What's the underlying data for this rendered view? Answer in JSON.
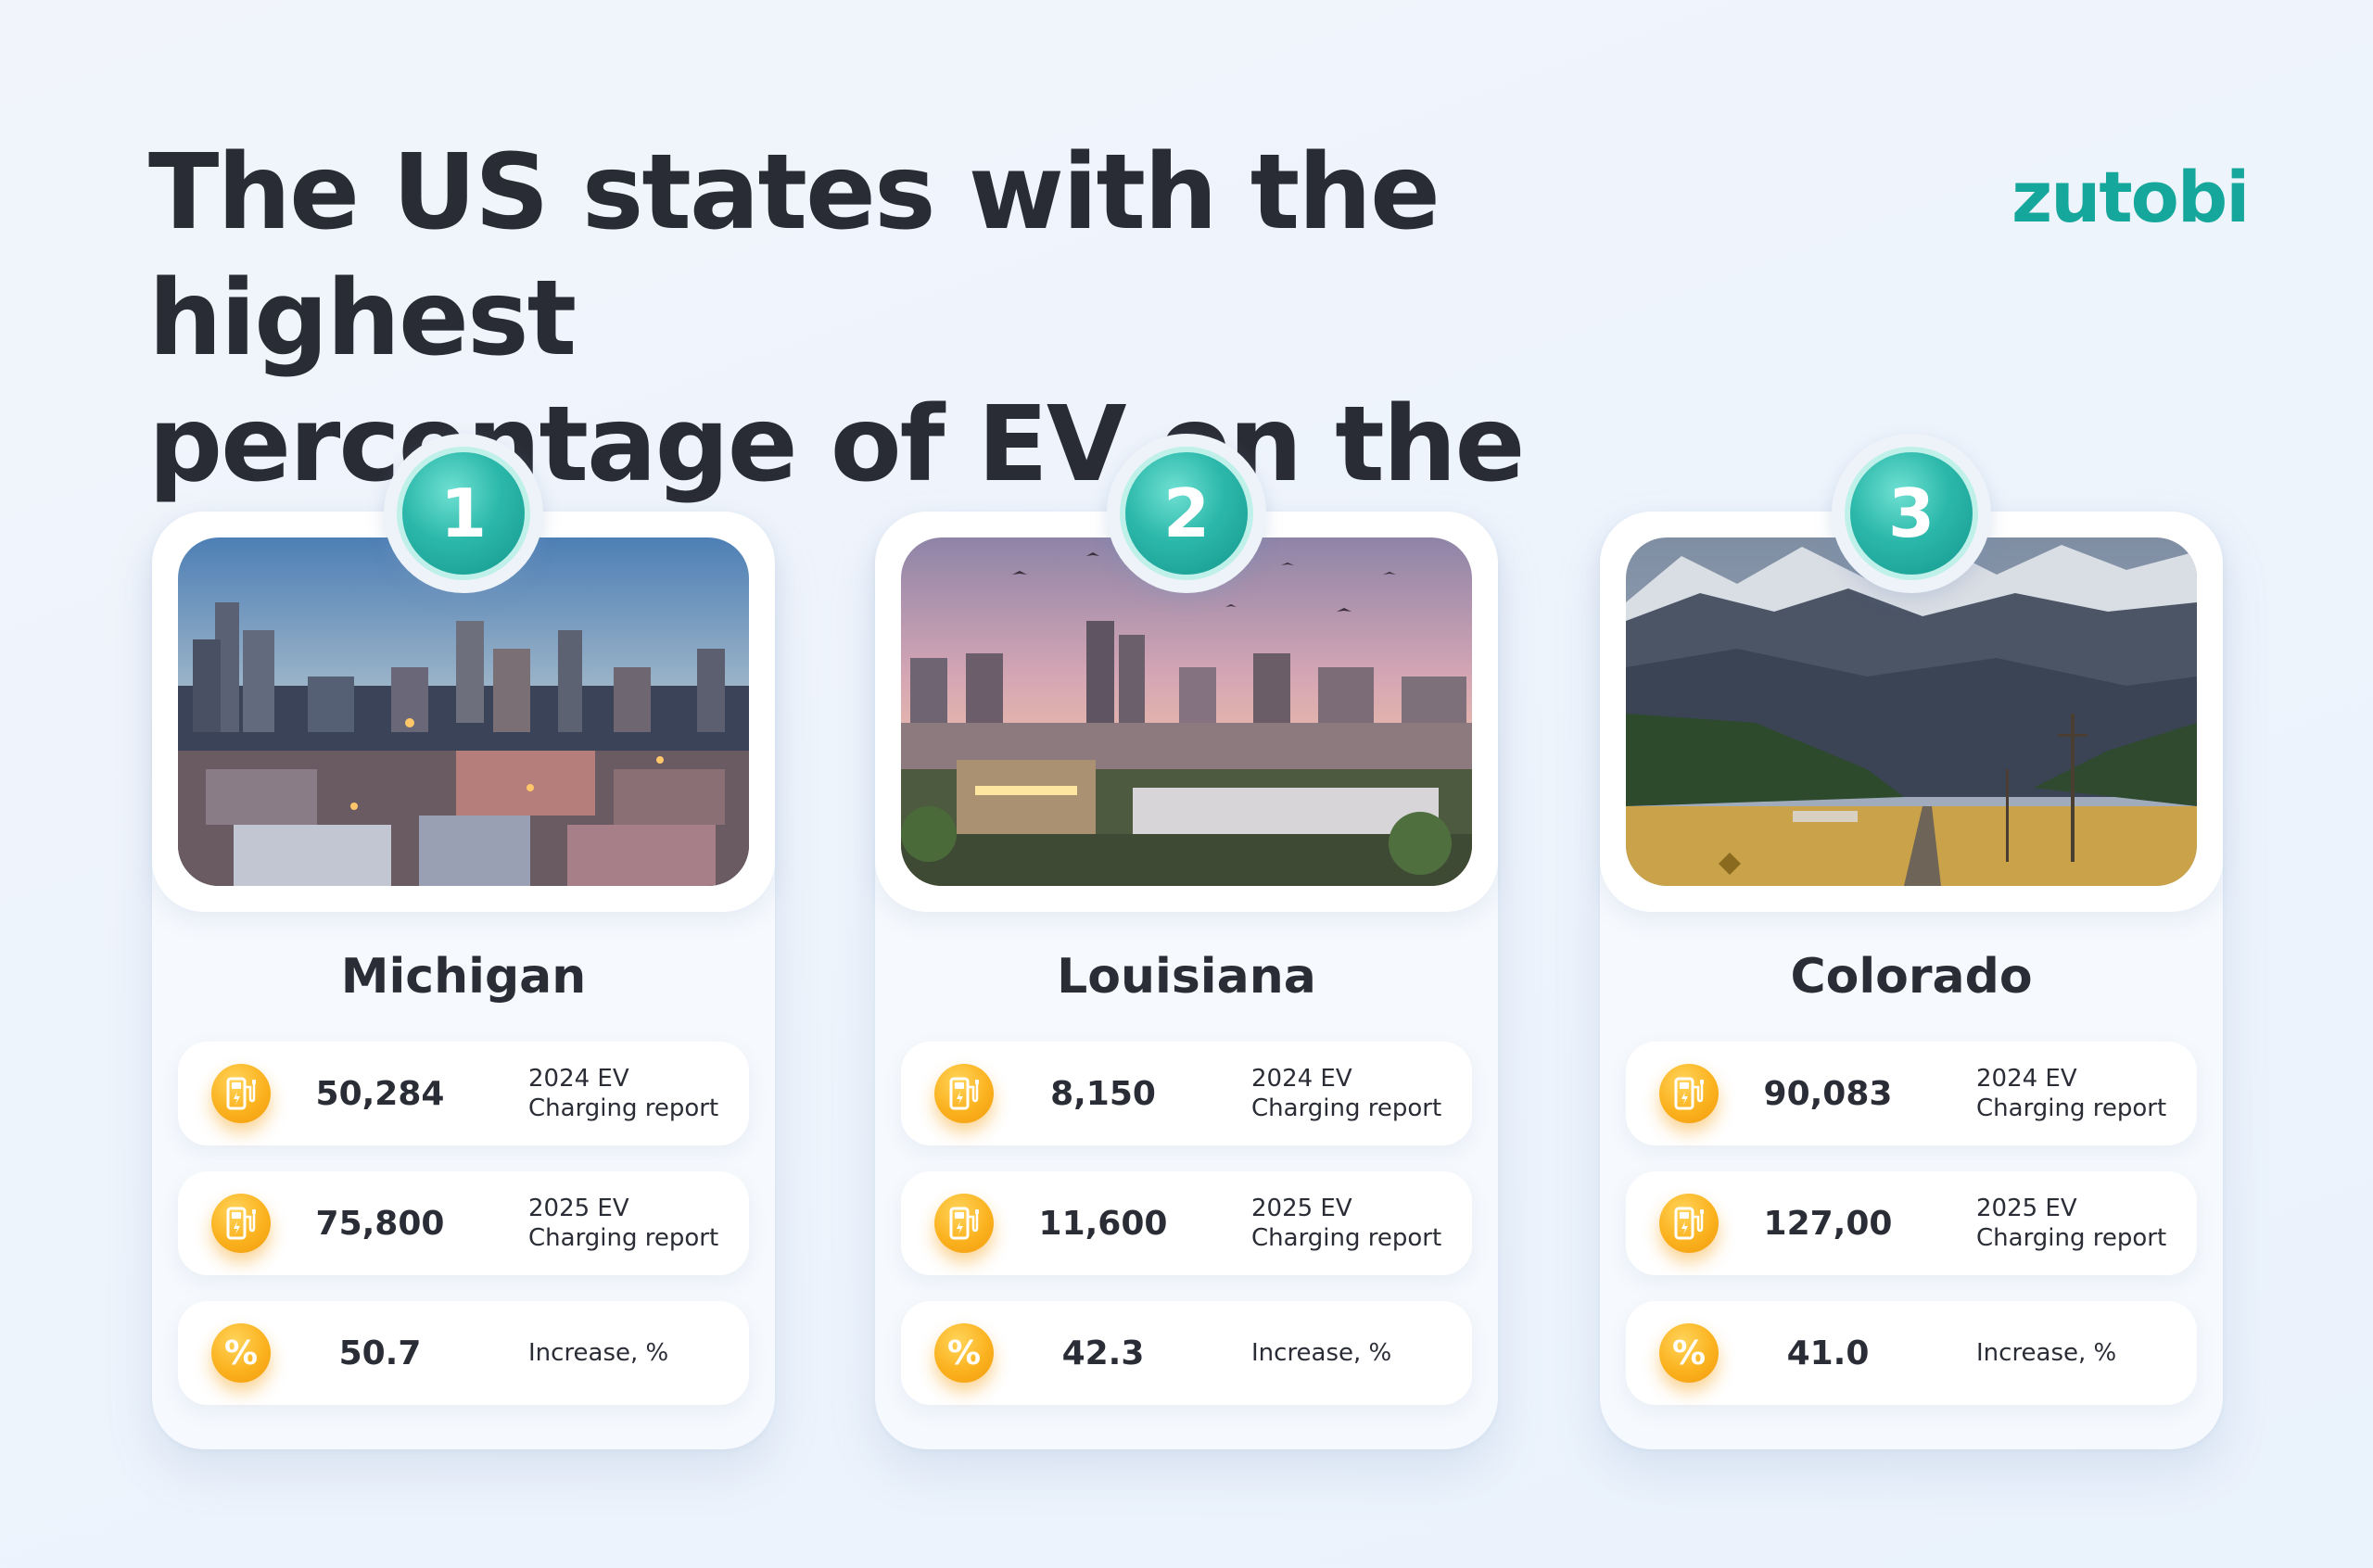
{
  "title_line1": "The US states with the highest",
  "title_line2": "percentage of EV on the road",
  "logo": "zutobi",
  "cards": [
    {
      "rank": "1",
      "state": "Michigan",
      "rows": [
        {
          "value": "50,284",
          "label_line1": "2024 EV",
          "label_line2": "Charging report",
          "icon": "ev-charger-icon"
        },
        {
          "value": "75,800",
          "label_line1": "2025 EV",
          "label_line2": "Charging report",
          "icon": "ev-charger-icon"
        },
        {
          "value": "50.7",
          "label_line1": "Increase, %",
          "label_line2": "",
          "icon": "percent-icon"
        }
      ]
    },
    {
      "rank": "2",
      "state": "Louisiana",
      "rows": [
        {
          "value": "8,150",
          "label_line1": "2024 EV",
          "label_line2": "Charging report",
          "icon": "ev-charger-icon"
        },
        {
          "value": "11,600",
          "label_line1": "2025 EV",
          "label_line2": "Charging report",
          "icon": "ev-charger-icon"
        },
        {
          "value": "42.3",
          "label_line1": "Increase, %",
          "label_line2": "",
          "icon": "percent-icon"
        }
      ]
    },
    {
      "rank": "3",
      "state": "Colorado",
      "rows": [
        {
          "value": "90,083",
          "label_line1": "2024 EV",
          "label_line2": "Charging report",
          "icon": "ev-charger-icon"
        },
        {
          "value": "127,00",
          "label_line1": "2025 EV",
          "label_line2": "Charging report",
          "icon": "ev-charger-icon"
        },
        {
          "value": "41.0",
          "label_line1": "Increase, %",
          "label_line2": "",
          "icon": "percent-icon"
        }
      ]
    }
  ],
  "percent_symbol": "%",
  "colors": {
    "brand_teal": "#16a79c",
    "badge_teal": "#2bb8aa",
    "icon_amber": "#fbb21f",
    "text_dark": "#2b2d36",
    "background": "#eef4fc"
  }
}
